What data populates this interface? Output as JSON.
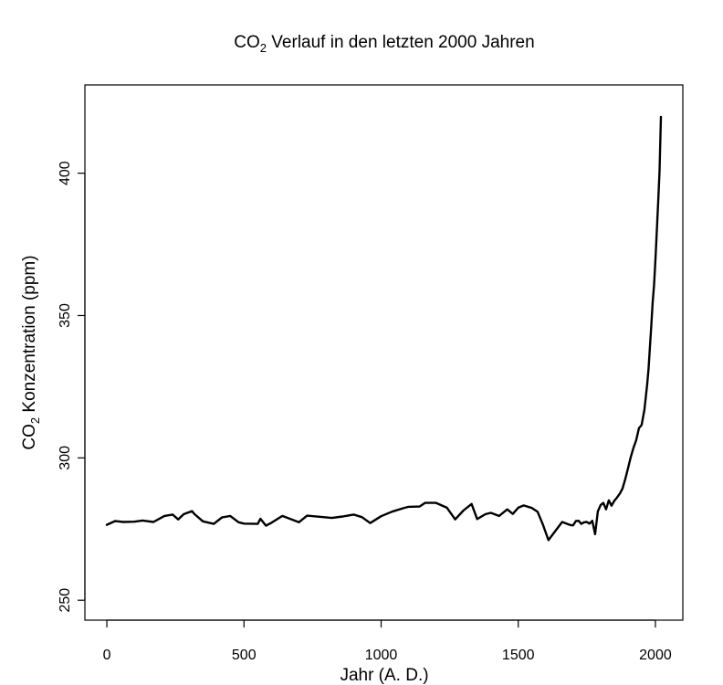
{
  "chart_data": {
    "type": "line",
    "title": "CO2 Verlauf in den letzten 2000 Jahren",
    "title_parts": {
      "pre": "CO",
      "sub": "2",
      "post": " Verlauf in den letzten 2000 Jahren"
    },
    "xlabel": "Jahr (A. D.)",
    "ylabel": "CO2 Konzentration (ppm)",
    "ylabel_parts": {
      "pre": "CO",
      "sub": "2",
      "post": " Konzentration (ppm)"
    },
    "xlim": [
      -80,
      2100
    ],
    "ylim": [
      243,
      431
    ],
    "x_ticks": [
      0,
      500,
      1000,
      1500,
      2000
    ],
    "y_ticks": [
      250,
      300,
      350,
      400
    ],
    "grid": false,
    "line_color": "#000000",
    "series": [
      {
        "x": [
          0,
          30,
          60,
          100,
          130,
          170,
          210,
          240,
          260,
          280,
          310,
          320,
          350,
          390,
          420,
          450,
          480,
          500,
          550,
          560,
          580,
          600,
          640,
          700,
          730,
          780,
          820,
          860,
          900,
          930,
          960,
          1000,
          1040,
          1080,
          1100,
          1140,
          1160,
          1200,
          1240,
          1270,
          1300,
          1330,
          1350,
          1380,
          1400,
          1430,
          1460,
          1480,
          1500,
          1520,
          1550,
          1570,
          1590,
          1610,
          1620,
          1660,
          1690,
          1700,
          1710,
          1720,
          1730,
          1740,
          1750,
          1760,
          1770,
          1780,
          1790,
          1800,
          1810,
          1820,
          1830,
          1840,
          1850,
          1860,
          1870,
          1880,
          1890,
          1900,
          1910,
          1920,
          1930,
          1940,
          1950,
          1960,
          1970,
          1975,
          1980,
          1985,
          1990,
          1995,
          2000,
          2005,
          2010,
          2015,
          2020
        ],
        "y": [
          276.5,
          277.8,
          277.5,
          277.6,
          278,
          277.5,
          279.6,
          280.1,
          278.4,
          280.2,
          281.3,
          280.2,
          277.7,
          276.8,
          279.1,
          279.6,
          277.4,
          276.9,
          276.8,
          278.6,
          276.2,
          277.2,
          279.6,
          277.4,
          279.7,
          279.3,
          278.9,
          279.4,
          280.1,
          279.2,
          277.1,
          279.5,
          281.1,
          282.3,
          282.8,
          282.9,
          284.2,
          284.2,
          282.5,
          278.4,
          281.5,
          283.8,
          278.5,
          280.2,
          280.7,
          279.6,
          281.9,
          280.3,
          282.5,
          283.3,
          282.4,
          281.1,
          276.5,
          271.1,
          272.4,
          277.5,
          276.4,
          276.3,
          277.8,
          277.9,
          276.8,
          277.4,
          277.5,
          276.9,
          277.9,
          273.2,
          281.2,
          283.4,
          284.2,
          281.9,
          285.1,
          283.2,
          284.9,
          286.1,
          287.4,
          289.2,
          292.5,
          296.3,
          300.2,
          303.5,
          306.2,
          310.4,
          311.6,
          316.9,
          325.7,
          331.1,
          338.7,
          346.2,
          354.4,
          360.8,
          369.7,
          379.8,
          389.9,
          400.8,
          419.8
        ]
      }
    ]
  }
}
